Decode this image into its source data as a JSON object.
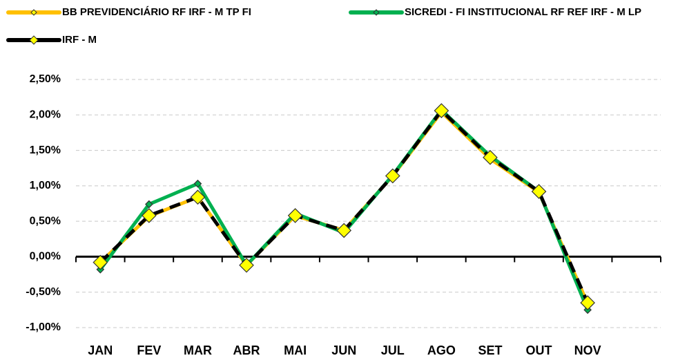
{
  "chart_data": {
    "type": "line",
    "categories": [
      "JAN",
      "FEV",
      "MAR",
      "ABR",
      "MAI",
      "JUN",
      "JUL",
      "AGO",
      "SET",
      "OUT",
      "NOV",
      null
    ],
    "series": [
      {
        "name": "BB PREVIDENCIÁRIO RF IRF - M TP FI",
        "color": "#FFC000",
        "values": [
          -0.08,
          0.57,
          0.84,
          -0.12,
          0.58,
          0.37,
          1.14,
          2.04,
          1.38,
          0.91,
          -0.66,
          null
        ]
      },
      {
        "name": "SICREDI - FI INSTITUCIONAL RF REF IRF - M LP",
        "color": "#00B050",
        "values": [
          -0.18,
          0.74,
          1.03,
          -0.12,
          0.61,
          0.34,
          1.15,
          2.07,
          1.42,
          0.92,
          -0.75,
          null
        ]
      },
      {
        "name": "IRF - M",
        "color": "#000000",
        "values": [
          -0.08,
          0.58,
          0.84,
          -0.12,
          0.58,
          0.37,
          1.14,
          2.06,
          1.4,
          0.92,
          -0.65,
          null
        ]
      }
    ],
    "ylim": [
      -1.0,
      2.5
    ],
    "yticks": [
      {
        "value": -1.0,
        "label": "-1,00%"
      },
      {
        "value": -0.5,
        "label": "-0,50%"
      },
      {
        "value": 0,
        "label": "0,00%"
      },
      {
        "value": 0.5,
        "label": "0,50%"
      },
      {
        "value": 1.0,
        "label": "1,00%"
      },
      {
        "value": 1.5,
        "label": "1,50%"
      },
      {
        "value": 2.0,
        "label": "2,00%"
      },
      {
        "value": 2.5,
        "label": "2,50%"
      }
    ],
    "grid": true,
    "legend": "top"
  }
}
